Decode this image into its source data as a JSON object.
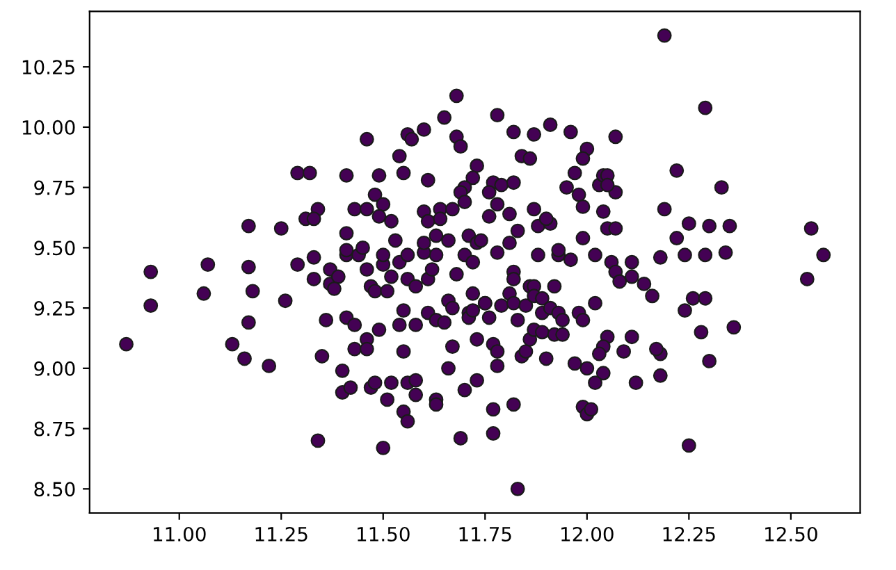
{
  "chart_data": {
    "type": "scatter",
    "marker": "circle",
    "grid": false,
    "xlim": [
      10.78,
      12.67
    ],
    "ylim": [
      8.4,
      10.48
    ],
    "xticks": [
      {
        "value": 11,
        "label": "11.00"
      },
      {
        "value": 11.25,
        "label": "11.25"
      },
      {
        "value": 11.5,
        "label": "11.50"
      },
      {
        "value": 11.75,
        "label": "11.75"
      },
      {
        "value": 12,
        "label": "12.00"
      },
      {
        "value": 12.25,
        "label": "12.25"
      },
      {
        "value": 12.5,
        "label": "12.50"
      }
    ],
    "yticks": [
      {
        "value": 8.5,
        "label": "8.50"
      },
      {
        "value": 8.75,
        "label": "8.75"
      },
      {
        "value": 9,
        "label": "9.00"
      },
      {
        "value": 9.25,
        "label": "9.25"
      },
      {
        "value": 9.5,
        "label": "9.50"
      },
      {
        "value": 9.75,
        "label": "9.75"
      },
      {
        "value": 10,
        "label": "10.00"
      },
      {
        "value": 10.25,
        "label": "10.25"
      }
    ],
    "series": [
      {
        "color": "#440154",
        "x": [
          10.93,
          10.93,
          11.07,
          11.06,
          10.87,
          11.17,
          11.18,
          11.17,
          11.13,
          11.16,
          11.22,
          11.26,
          11.29,
          11.33,
          11.33,
          11.34,
          11.5,
          11.35,
          11.36,
          11.4,
          11.4,
          11.42,
          11.41,
          11.43,
          11.43,
          11.46,
          11.46,
          11.49,
          11.47,
          11.48,
          11.51,
          11.52,
          11.55,
          11.55,
          11.56,
          11.56,
          11.58,
          11.58,
          11.54,
          11.55,
          11.58,
          11.61,
          11.63,
          11.65,
          11.63,
          11.63,
          11.66,
          11.67,
          11.66,
          11.67,
          11.68,
          11.69,
          11.7,
          11.71,
          11.71,
          11.72,
          11.73,
          11.73,
          11.75,
          11.76,
          11.77,
          11.77,
          11.77,
          11.78,
          11.41,
          11.44,
          11.37,
          11.37,
          11.39,
          11.38,
          11.46,
          11.47,
          11.48,
          11.5,
          11.51,
          11.52,
          11.54,
          11.56,
          11.58,
          11.61,
          11.62,
          11.63,
          11.56,
          11.6,
          11.7,
          11.72,
          12.58,
          12.54,
          12.36,
          12.3,
          12.28,
          12.24,
          12.26,
          12.29,
          12.25,
          11.83,
          11.82,
          11.99,
          12.0,
          12.01,
          12.12,
          12.18,
          12.18,
          12.17,
          12.09,
          12.11,
          12.05,
          12.04,
          12.03,
          12.04,
          12.02,
          12.0,
          11.97,
          11.9,
          11.84,
          11.85,
          11.86,
          11.87,
          11.89,
          11.92,
          11.94,
          11.78,
          11.75,
          11.72,
          11.82,
          11.82,
          11.81,
          11.79,
          11.82,
          11.83,
          11.85,
          11.86,
          11.87,
          11.87,
          11.89,
          11.89,
          11.91,
          11.92,
          11.93,
          11.94,
          11.98,
          11.99,
          12.02,
          12.06,
          12.07,
          12.08,
          12.11,
          12.11,
          12.14,
          12.16,
          12.18,
          12.24,
          12.29,
          12.34,
          12.02,
          11.93,
          11.88,
          11.96,
          12.19,
          12.29,
          12.22,
          12.33,
          12.19,
          12.55,
          12.25,
          12.3,
          12.35,
          12.22,
          12.07,
          12.0,
          11.99,
          11.96,
          11.91,
          11.87,
          11.82,
          11.78,
          11.68,
          11.65,
          11.6,
          11.68,
          11.69,
          11.73,
          11.84,
          11.86,
          11.97,
          11.61,
          11.72,
          11.7,
          11.69,
          11.7,
          11.77,
          11.76,
          11.79,
          11.82,
          11.78,
          11.76,
          11.81,
          11.87,
          11.88,
          11.91,
          11.9,
          11.83,
          11.95,
          11.98,
          11.99,
          12.03,
          12.04,
          12.05,
          12.07,
          12.05,
          12.04,
          12.05,
          12.07,
          11.99,
          11.93,
          11.6,
          11.64,
          11.67,
          11.61,
          11.64,
          11.71,
          11.63,
          11.66,
          11.73,
          11.81,
          11.78,
          11.56,
          11.57,
          11.46,
          11.54,
          11.29,
          11.32,
          11.41,
          11.49,
          11.55,
          11.48,
          11.5,
          11.43,
          11.46,
          11.34,
          11.31,
          11.33,
          11.49,
          11.52,
          11.17,
          11.25,
          11.41,
          11.53,
          11.41,
          11.45,
          11.5,
          11.6,
          11.74
        ],
        "values": [
          9.4,
          9.26,
          9.43,
          9.31,
          9.1,
          9.42,
          9.32,
          9.19,
          9.1,
          9.04,
          9.01,
          9.28,
          9.43,
          9.46,
          9.37,
          8.7,
          8.67,
          9.05,
          9.2,
          8.99,
          8.9,
          8.92,
          9.21,
          9.18,
          9.08,
          9.12,
          9.08,
          9.16,
          8.92,
          8.94,
          8.87,
          8.94,
          9.07,
          8.82,
          8.78,
          8.94,
          8.95,
          8.89,
          9.18,
          9.24,
          9.18,
          9.23,
          9.2,
          9.19,
          8.87,
          8.85,
          9.0,
          9.09,
          9.28,
          9.25,
          9.39,
          8.71,
          8.91,
          9.23,
          9.21,
          9.31,
          9.12,
          8.95,
          9.27,
          9.21,
          8.83,
          8.73,
          9.1,
          9.01,
          9.47,
          9.47,
          9.41,
          9.35,
          9.38,
          9.33,
          9.41,
          9.34,
          9.32,
          9.43,
          9.32,
          9.38,
          9.44,
          9.37,
          9.34,
          9.37,
          9.41,
          9.47,
          9.47,
          9.48,
          9.47,
          9.44,
          9.47,
          9.37,
          9.17,
          9.03,
          9.15,
          9.24,
          9.29,
          9.29,
          8.68,
          8.5,
          8.85,
          8.84,
          8.81,
          8.83,
          8.94,
          8.97,
          9.06,
          9.08,
          9.07,
          9.13,
          9.13,
          9.09,
          9.06,
          8.98,
          8.94,
          9.0,
          9.02,
          9.04,
          9.05,
          9.07,
          9.12,
          9.16,
          9.15,
          9.14,
          9.14,
          9.07,
          9.27,
          9.24,
          9.4,
          9.37,
          9.31,
          9.26,
          9.27,
          9.2,
          9.26,
          9.34,
          9.34,
          9.3,
          9.29,
          9.23,
          9.25,
          9.34,
          9.23,
          9.2,
          9.23,
          9.2,
          9.27,
          9.44,
          9.4,
          9.36,
          9.44,
          9.38,
          9.35,
          9.3,
          9.46,
          9.47,
          9.47,
          9.48,
          9.47,
          9.47,
          9.47,
          9.45,
          10.38,
          10.08,
          9.82,
          9.75,
          9.66,
          9.58,
          9.6,
          9.59,
          9.59,
          9.54,
          9.96,
          9.91,
          9.87,
          9.98,
          10.01,
          9.97,
          9.98,
          10.05,
          10.13,
          10.04,
          9.99,
          9.96,
          9.92,
          9.84,
          9.88,
          9.87,
          9.81,
          9.78,
          9.79,
          9.75,
          9.73,
          9.69,
          9.77,
          9.73,
          9.76,
          9.77,
          9.68,
          9.63,
          9.64,
          9.66,
          9.59,
          9.6,
          9.62,
          9.57,
          9.75,
          9.72,
          9.67,
          9.76,
          9.8,
          9.8,
          9.73,
          9.76,
          9.65,
          9.58,
          9.58,
          9.54,
          9.49,
          9.65,
          9.66,
          9.66,
          9.61,
          9.62,
          9.55,
          9.55,
          9.53,
          9.52,
          9.52,
          9.48,
          9.97,
          9.95,
          9.95,
          9.88,
          9.81,
          9.81,
          9.8,
          9.8,
          9.81,
          9.72,
          9.68,
          9.66,
          9.66,
          9.66,
          9.62,
          9.62,
          9.63,
          9.61,
          9.59,
          9.58,
          9.56,
          9.53,
          9.49,
          9.5,
          9.47,
          9.52,
          9.53
        ]
      }
    ]
  }
}
